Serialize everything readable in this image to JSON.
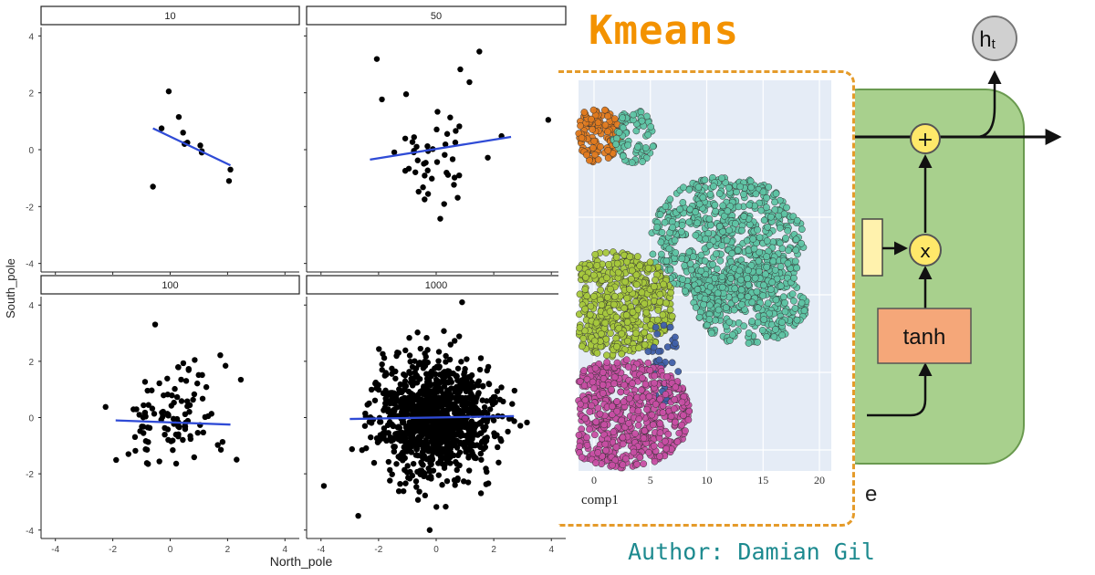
{
  "facets": {
    "axis_x_label": "North_pole",
    "axis_y_label": "South_pole",
    "tick_labels": [
      "-4",
      "-2",
      "0",
      "2",
      "4"
    ],
    "panels": [
      {
        "label": "10",
        "n": 12,
        "fit": [
          [
            -0.6,
            0.75
          ],
          [
            2.1,
            -0.55
          ]
        ]
      },
      {
        "label": "50",
        "n": 50,
        "fit": [
          [
            -2.3,
            -0.35
          ],
          [
            2.6,
            0.45
          ]
        ]
      },
      {
        "label": "100",
        "n": 110,
        "fit": [
          [
            -1.9,
            -0.1
          ],
          [
            2.1,
            -0.25
          ]
        ]
      },
      {
        "label": "1000",
        "n": 1100,
        "fit": [
          [
            -3.0,
            -0.05
          ],
          [
            2.7,
            0.05
          ]
        ]
      }
    ],
    "points_10": [
      [
        -0.6,
        -1.3
      ],
      [
        -0.05,
        2.05
      ],
      [
        -0.3,
        0.75
      ],
      [
        0.3,
        1.15
      ],
      [
        0.45,
        0.6
      ],
      [
        0.5,
        0.2
      ],
      [
        1.05,
        0.15
      ],
      [
        1.1,
        -0.05
      ],
      [
        2.1,
        -0.7
      ],
      [
        2.05,
        -1.1
      ],
      [
        0.6,
        0.25
      ],
      [
        1.1,
        -0.1
      ]
    ]
  },
  "kmeans": {
    "title": "Kmeans",
    "x_ticks": [
      "0",
      "5",
      "10",
      "15",
      "20"
    ],
    "x_label": "comp1",
    "colors": {
      "orange": "#e07a1f",
      "teal": "#5ec4a4",
      "green": "#a6c83c",
      "magenta": "#c74ea3",
      "blue": "#3f5fa8",
      "background": "#e5ecf6"
    }
  },
  "lstm": {
    "output_label": "h",
    "output_sub": "t",
    "plus_symbol": "+",
    "times_symbol": "x",
    "tanh_label": "tanh",
    "trailing_char": "e"
  },
  "author": "Author: Damian Gil"
}
